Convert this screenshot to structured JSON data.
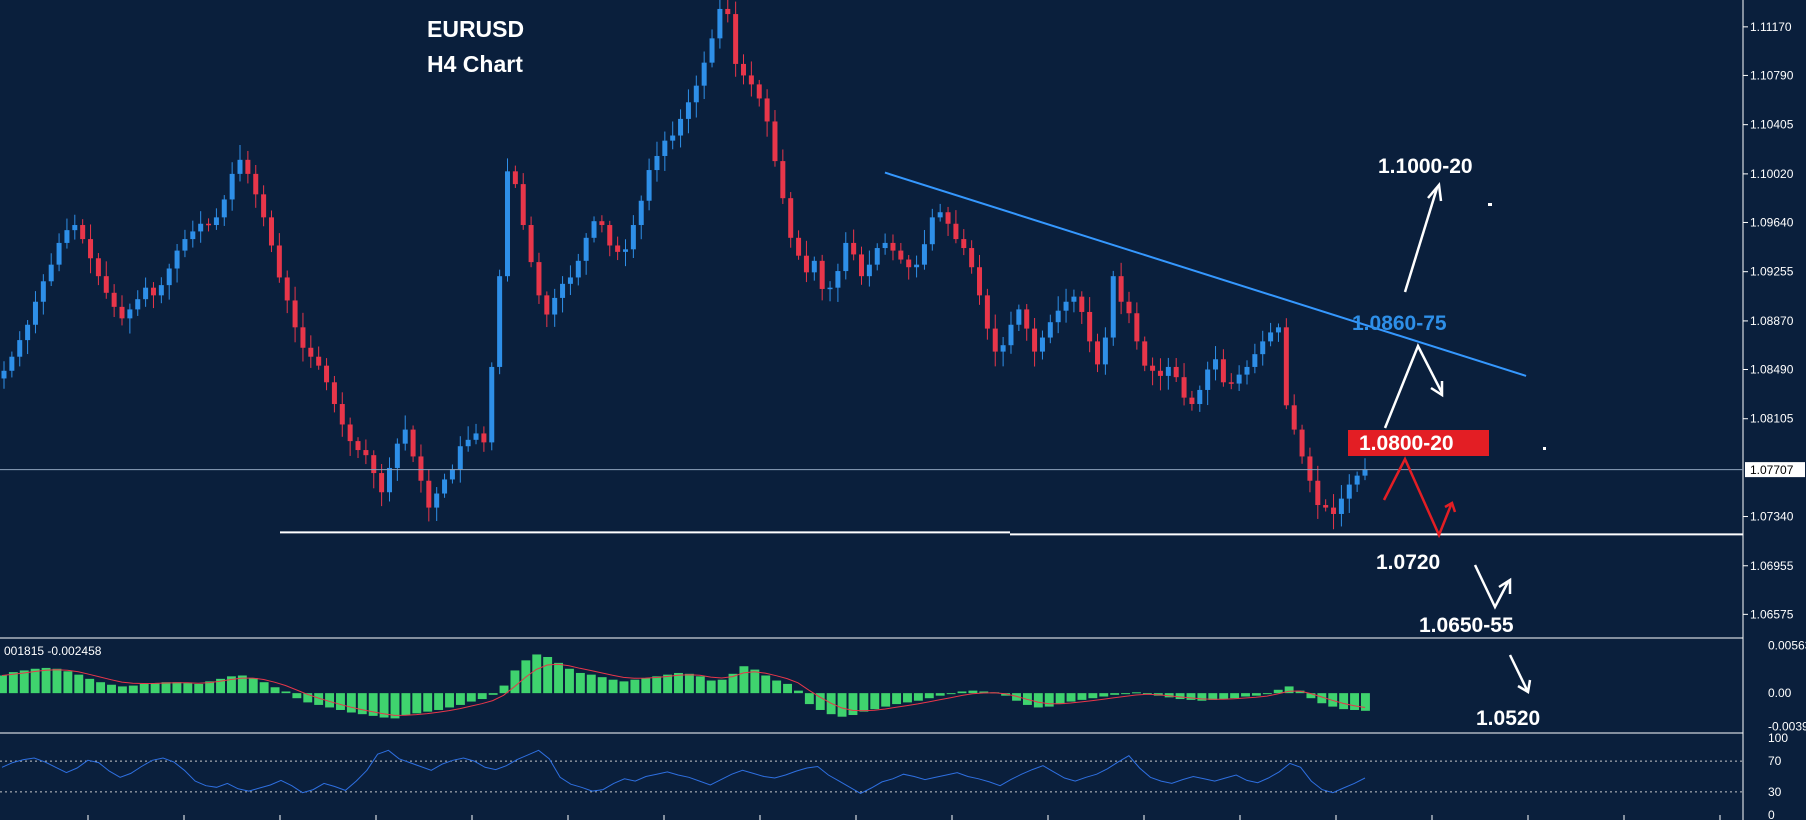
{
  "chart_data": [
    {
      "type": "candlestick",
      "title": "EURUSD",
      "subtitle": "H4 Chart",
      "y_ticks": [
        "1.11170",
        "1.10790",
        "1.10405",
        "1.10020",
        "1.09640",
        "1.09255",
        "1.08870",
        "1.08490",
        "1.08105",
        "1.07340",
        "1.06955",
        "1.06575"
      ],
      "y_tick_values": [
        1.1117,
        1.1079,
        1.10405,
        1.1002,
        1.0964,
        1.09255,
        1.0887,
        1.0849,
        1.08105,
        1.0734,
        1.06955,
        1.06575
      ],
      "ylim": [
        1.0639,
        1.1138
      ],
      "current_price_label": "1.07707",
      "current_price": 1.07707,
      "colors": {
        "bull": "#2e8fe8",
        "bear": "#e8364a",
        "background": "#0a1f3c",
        "trendline": "#2e8fe8"
      },
      "candles_close": [
        1.0848,
        1.0859,
        1.0872,
        1.0884,
        1.0902,
        1.0918,
        1.0931,
        1.0948,
        1.0958,
        1.0962,
        1.0951,
        1.0936,
        1.0922,
        1.0909,
        1.0898,
        1.0889,
        1.0896,
        1.0904,
        1.0913,
        1.0907,
        1.0915,
        1.0928,
        1.0942,
        1.0951,
        1.0957,
        1.0963,
        1.0962,
        1.0968,
        1.0982,
        1.1002,
        1.1013,
        1.1002,
        1.0986,
        1.0968,
        1.0946,
        1.0921,
        1.0903,
        1.0882,
        1.0866,
        1.0859,
        1.0852,
        1.0839,
        1.0822,
        1.0806,
        1.0793,
        1.0786,
        1.0782,
        1.0768,
        1.0753,
        1.0772,
        1.0791,
        1.0802,
        1.0781,
        1.0762,
        1.0741,
        1.0752,
        1.0763,
        1.0771,
        1.0789,
        1.0794,
        1.0799,
        1.0792,
        1.0851,
        1.0922,
        1.1004,
        1.0994,
        1.0962,
        1.0933,
        1.0907,
        1.0892,
        1.0905,
        1.0916,
        1.0921,
        1.0934,
        1.0952,
        1.0965,
        1.0962,
        1.0946,
        1.0941,
        1.0943,
        1.0962,
        1.0981,
        1.1005,
        1.1016,
        1.1028,
        1.1032,
        1.1045,
        1.1058,
        1.1071,
        1.1089,
        1.1108,
        1.1131,
        1.1127,
        1.1088,
        1.1079,
        1.1072,
        1.1061,
        1.1043,
        1.1012,
        1.0983,
        1.0952,
        1.0938,
        1.0925,
        1.0934,
        1.0912,
        1.0913,
        1.0926,
        1.0948,
        1.0939,
        1.0922,
        1.0931,
        1.0944,
        1.0948,
        1.0942,
        1.0935,
        1.0929,
        1.0931,
        1.0947,
        1.0968,
        1.0972,
        1.0963,
        1.0951,
        1.0944,
        1.0929,
        1.0907,
        1.0881,
        1.0863,
        1.0868,
        1.0884,
        1.0896,
        1.0881,
        1.0863,
        1.0874,
        1.0886,
        1.0895,
        1.0902,
        1.0906,
        1.0894,
        1.0871,
        1.0853,
        1.0874,
        1.0922,
        1.0902,
        1.0893,
        1.0871,
        1.0852,
        1.0848,
        1.0844,
        1.0851,
        1.0843,
        1.0827,
        1.0822,
        1.0833,
        1.0849,
        1.0857,
        1.0839,
        1.0838,
        1.0845,
        1.0851,
        1.0861,
        1.0871,
        1.0878,
        1.0882,
        1.0821,
        1.0802,
        1.0781,
        1.0762,
        1.0743,
        1.0741,
        1.0736,
        1.0748,
        1.0759,
        1.0766,
        1.0771
      ],
      "trendline": {
        "from": [
          0.49,
          1.1003
        ],
        "to": [
          0.845,
          1.0844
        ]
      },
      "support_line": {
        "value": 1.072,
        "label": "1.0720"
      },
      "annotations": [
        {
          "label": "1.1000-20",
          "value": 1.1002
        },
        {
          "label": "1.0860-75",
          "value": 1.0868
        },
        {
          "label": "1.0800-20",
          "value": 1.081,
          "boxed": true,
          "box_color": "#e31e24"
        },
        {
          "label": "1.0720",
          "value": 1.072
        },
        {
          "label": "1.0650-55",
          "value": 1.0652
        },
        {
          "label": "1.0520",
          "value": 1.052
        }
      ]
    },
    {
      "type": "bar",
      "name": "MACD",
      "header": "001815 -0.002458",
      "y_ticks": [
        "0.005636",
        "0.00",
        "-0.003941"
      ],
      "y_tick_values": [
        0.005636,
        0.0,
        -0.003941
      ],
      "ylim": [
        -0.0045,
        0.0062
      ],
      "colors": {
        "bars": "#3fd36e",
        "signal": "#e8364a"
      },
      "values": [
        0.0021,
        0.0025,
        0.0027,
        0.0029,
        0.003,
        0.0029,
        0.0026,
        0.0022,
        0.0017,
        0.0013,
        0.001,
        0.0008,
        0.0009,
        0.0011,
        0.0012,
        0.0013,
        0.0013,
        0.0012,
        0.0011,
        0.0014,
        0.0017,
        0.002,
        0.0021,
        0.0018,
        0.0013,
        0.0007,
        0.0002,
        -0.0006,
        -0.0011,
        -0.0014,
        -0.0017,
        -0.002,
        -0.0023,
        -0.0025,
        -0.0027,
        -0.0029,
        -0.003,
        -0.0026,
        -0.0024,
        -0.0022,
        -0.002,
        -0.0017,
        -0.0014,
        -0.001,
        -0.0007,
        -0.0002,
        0.0009,
        0.0027,
        0.0039,
        0.0046,
        0.0043,
        0.0036,
        0.0029,
        0.0024,
        0.0022,
        0.0019,
        0.0016,
        0.0014,
        0.0016,
        0.0018,
        0.002,
        0.0022,
        0.0024,
        0.0023,
        0.002,
        0.0015,
        0.0016,
        0.0023,
        0.0032,
        0.0028,
        0.0021,
        0.0015,
        0.0011,
        0.0003,
        -0.0013,
        -0.002,
        -0.0025,
        -0.0028,
        -0.0026,
        -0.0022,
        -0.0019,
        -0.0016,
        -0.0013,
        -0.0011,
        -0.0009,
        -0.0006,
        -0.0003,
        -0.0001,
        0.0002,
        0.0003,
        0.0002,
        0.0001,
        -0.0003,
        -0.0009,
        -0.0014,
        -0.0017,
        -0.0016,
        -0.0013,
        -0.001,
        -0.0008,
        -0.0006,
        -0.0004,
        -0.0002,
        -0.0001,
        0.0001,
        0.0,
        -0.0003,
        -0.0005,
        -0.0007,
        -0.0008,
        -0.0009,
        -0.0008,
        -0.0007,
        -0.0006,
        -0.0004,
        -0.0003,
        -0.0001,
        0.0004,
        0.0008,
        0.0003,
        -0.0006,
        -0.0012,
        -0.0016,
        -0.0019,
        -0.002,
        -0.0021
      ]
    },
    {
      "type": "line",
      "name": "RSI",
      "y_ticks": [
        "100",
        "70",
        "30",
        "0"
      ],
      "y_tick_values": [
        100,
        70,
        30,
        0
      ],
      "ylim": [
        0,
        100
      ],
      "levels": [
        70,
        30
      ],
      "colors": {
        "line": "#2e6fe0",
        "levels": "#cccccc"
      },
      "values": [
        62,
        68,
        72,
        74,
        69,
        62,
        55,
        61,
        71,
        68,
        57,
        49,
        54,
        63,
        71,
        74,
        69,
        58,
        44,
        38,
        36,
        41,
        34,
        31,
        35,
        39,
        45,
        38,
        29,
        33,
        41,
        37,
        32,
        44,
        58,
        79,
        84,
        73,
        68,
        63,
        58,
        66,
        71,
        74,
        70,
        62,
        59,
        64,
        72,
        78,
        84,
        73,
        49,
        40,
        36,
        31,
        33,
        41,
        47,
        44,
        50,
        53,
        56,
        52,
        49,
        44,
        39,
        46,
        53,
        58,
        54,
        50,
        48,
        52,
        57,
        61,
        63,
        52,
        44,
        36,
        28,
        35,
        43,
        47,
        53,
        50,
        46,
        49,
        52,
        55,
        50,
        47,
        43,
        38,
        46,
        53,
        59,
        64,
        56,
        48,
        44,
        49,
        53,
        60,
        69,
        77,
        61,
        49,
        44,
        41,
        46,
        50,
        47,
        44,
        48,
        52,
        45,
        42,
        48,
        56,
        67,
        62,
        44,
        33,
        29,
        35,
        41,
        48
      ]
    }
  ]
}
